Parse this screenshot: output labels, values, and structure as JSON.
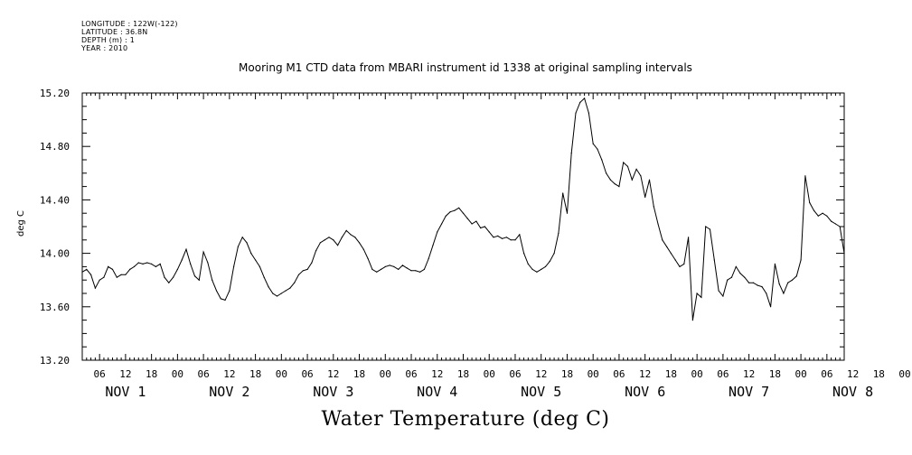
{
  "header": {
    "longitude": "LONGITUDE : 122W(-122)",
    "latitude": "LATITUDE : 36.8N",
    "depth": "DEPTH (m) : 1",
    "year": "YEAR : 2010"
  },
  "chart_data": {
    "type": "line",
    "title": "Mooring M1 CTD data from MBARI instrument id 1338 at original sampling intervals",
    "xlabel": "Water Temperature (deg C)",
    "ylabel": "deg C",
    "ylim": [
      13.2,
      15.2
    ],
    "yticks": [
      "13.20",
      "13.60",
      "14.00",
      "14.40",
      "14.80",
      "15.20"
    ],
    "xlim_hours": [
      2,
      178
    ],
    "hour_ticks": [
      "06",
      "12",
      "18",
      "00",
      "06",
      "12",
      "18",
      "00",
      "06",
      "12",
      "18",
      "00",
      "06",
      "12",
      "18",
      "00",
      "06",
      "12",
      "18",
      "00",
      "06",
      "12",
      "18",
      "00",
      "06",
      "12",
      "18",
      "00",
      "06",
      "12",
      "18",
      "00"
    ],
    "day_labels": [
      "NOV  1",
      "NOV  2",
      "NOV  3",
      "NOV  4",
      "NOV  5",
      "NOV  6",
      "NOV  7",
      "NOV  8"
    ],
    "grid": false,
    "series": [
      {
        "color": "#000000",
        "points": [
          [
            2,
            13.86
          ],
          [
            3,
            13.88
          ],
          [
            4,
            13.84
          ],
          [
            5,
            13.74
          ],
          [
            6,
            13.8
          ],
          [
            7,
            13.82
          ],
          [
            8,
            13.9
          ],
          [
            9,
            13.88
          ],
          [
            10,
            13.82
          ],
          [
            11,
            13.84
          ],
          [
            12,
            13.84
          ],
          [
            13,
            13.88
          ],
          [
            14,
            13.9
          ],
          [
            15,
            13.93
          ],
          [
            16,
            13.92
          ],
          [
            17,
            13.93
          ],
          [
            18,
            13.92
          ],
          [
            19,
            13.9
          ],
          [
            20,
            13.92
          ],
          [
            21,
            13.82
          ],
          [
            22,
            13.78
          ],
          [
            23,
            13.82
          ],
          [
            24,
            13.88
          ],
          [
            25,
            13.95
          ],
          [
            26,
            14.03
          ],
          [
            27,
            13.92
          ],
          [
            28,
            13.83
          ],
          [
            29,
            13.8
          ],
          [
            30,
            14.01
          ],
          [
            31,
            13.93
          ],
          [
            32,
            13.8
          ],
          [
            33,
            13.72
          ],
          [
            34,
            13.66
          ],
          [
            35,
            13.65
          ],
          [
            36,
            13.72
          ],
          [
            37,
            13.9
          ],
          [
            38,
            14.05
          ],
          [
            39,
            14.12
          ],
          [
            40,
            14.08
          ],
          [
            41,
            14.0
          ],
          [
            42,
            13.95
          ],
          [
            43,
            13.9
          ],
          [
            44,
            13.82
          ],
          [
            45,
            13.75
          ],
          [
            46,
            13.7
          ],
          [
            47,
            13.68
          ],
          [
            48,
            13.7
          ],
          [
            49,
            13.72
          ],
          [
            50,
            13.74
          ],
          [
            51,
            13.78
          ],
          [
            52,
            13.84
          ],
          [
            53,
            13.87
          ],
          [
            54,
            13.88
          ],
          [
            55,
            13.93
          ],
          [
            56,
            14.02
          ],
          [
            57,
            14.08
          ],
          [
            58,
            14.1
          ],
          [
            59,
            14.12
          ],
          [
            60,
            14.1
          ],
          [
            61,
            14.06
          ],
          [
            62,
            14.12
          ],
          [
            63,
            14.17
          ],
          [
            64,
            14.14
          ],
          [
            65,
            14.12
          ],
          [
            66,
            14.08
          ],
          [
            67,
            14.03
          ],
          [
            68,
            13.96
          ],
          [
            69,
            13.88
          ],
          [
            70,
            13.86
          ],
          [
            71,
            13.88
          ],
          [
            72,
            13.9
          ],
          [
            73,
            13.91
          ],
          [
            74,
            13.9
          ],
          [
            75,
            13.88
          ],
          [
            76,
            13.91
          ],
          [
            77,
            13.89
          ],
          [
            78,
            13.87
          ],
          [
            79,
            13.87
          ],
          [
            80,
            13.86
          ],
          [
            81,
            13.88
          ],
          [
            82,
            13.96
          ],
          [
            83,
            14.06
          ],
          [
            84,
            14.16
          ],
          [
            85,
            14.22
          ],
          [
            86,
            14.28
          ],
          [
            87,
            14.31
          ],
          [
            88,
            14.32
          ],
          [
            89,
            14.34
          ],
          [
            90,
            14.3
          ],
          [
            91,
            14.26
          ],
          [
            92,
            14.22
          ],
          [
            93,
            14.24
          ],
          [
            94,
            14.19
          ],
          [
            95,
            14.2
          ],
          [
            96,
            14.16
          ],
          [
            97,
            14.12
          ],
          [
            98,
            14.13
          ],
          [
            99,
            14.11
          ],
          [
            100,
            14.12
          ],
          [
            101,
            14.1
          ],
          [
            102,
            14.1
          ],
          [
            103,
            14.14
          ],
          [
            104,
            14.0
          ],
          [
            105,
            13.92
          ],
          [
            106,
            13.88
          ],
          [
            107,
            13.86
          ],
          [
            108,
            13.88
          ],
          [
            109,
            13.9
          ],
          [
            110,
            13.94
          ],
          [
            111,
            14.0
          ],
          [
            112,
            14.15
          ],
          [
            113,
            14.45
          ],
          [
            114,
            14.3
          ],
          [
            115,
            14.75
          ],
          [
            116,
            15.05
          ],
          [
            117,
            15.13
          ],
          [
            118,
            15.16
          ],
          [
            119,
            15.05
          ],
          [
            120,
            14.82
          ],
          [
            121,
            14.78
          ],
          [
            122,
            14.7
          ],
          [
            123,
            14.6
          ],
          [
            124,
            14.55
          ],
          [
            125,
            14.52
          ],
          [
            126,
            14.5
          ],
          [
            127,
            14.68
          ],
          [
            128,
            14.65
          ],
          [
            129,
            14.55
          ],
          [
            130,
            14.63
          ],
          [
            131,
            14.58
          ],
          [
            132,
            14.42
          ],
          [
            133,
            14.55
          ],
          [
            134,
            14.35
          ],
          [
            135,
            14.22
          ],
          [
            136,
            14.1
          ],
          [
            137,
            14.05
          ],
          [
            138,
            14.0
          ],
          [
            139,
            13.95
          ],
          [
            140,
            13.9
          ],
          [
            141,
            13.92
          ],
          [
            142,
            14.12
          ],
          [
            143,
            13.5
          ],
          [
            144,
            13.7
          ],
          [
            145,
            13.67
          ],
          [
            146,
            14.2
          ],
          [
            147,
            14.18
          ],
          [
            148,
            13.95
          ],
          [
            149,
            13.72
          ],
          [
            150,
            13.68
          ],
          [
            151,
            13.8
          ],
          [
            152,
            13.82
          ],
          [
            153,
            13.9
          ],
          [
            154,
            13.85
          ],
          [
            155,
            13.82
          ],
          [
            156,
            13.78
          ],
          [
            157,
            13.78
          ],
          [
            158,
            13.76
          ],
          [
            159,
            13.75
          ],
          [
            160,
            13.7
          ],
          [
            161,
            13.6
          ],
          [
            162,
            13.92
          ],
          [
            163,
            13.77
          ],
          [
            164,
            13.7
          ],
          [
            165,
            13.78
          ],
          [
            166,
            13.8
          ],
          [
            167,
            13.83
          ],
          [
            168,
            13.95
          ],
          [
            169,
            14.58
          ],
          [
            170,
            14.38
          ],
          [
            171,
            14.32
          ],
          [
            172,
            14.28
          ],
          [
            173,
            14.3
          ],
          [
            174,
            14.28
          ],
          [
            175,
            14.24
          ],
          [
            176,
            14.22
          ],
          [
            177,
            14.2
          ],
          [
            178,
            14.0
          ]
        ]
      }
    ]
  }
}
